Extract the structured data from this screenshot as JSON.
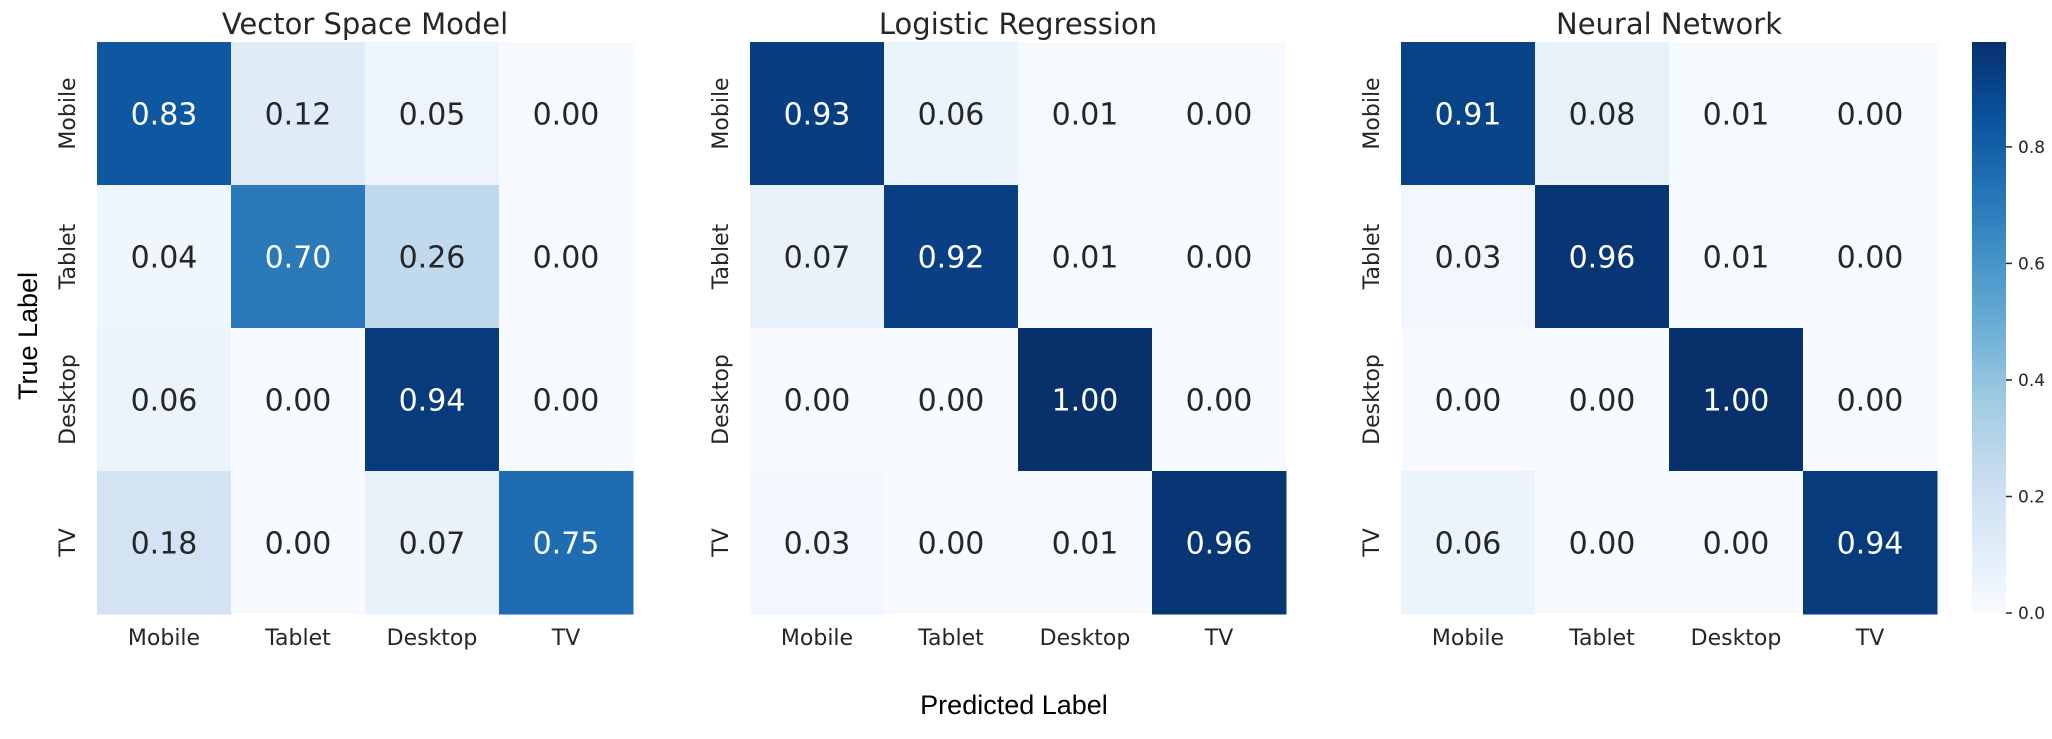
{
  "figure": {
    "xlabel": "Predicted Label",
    "ylabel": "True Label"
  },
  "chart_data": [
    {
      "type": "heatmap",
      "title": "Vector Space Model",
      "x_categories": [
        "Mobile",
        "Tablet",
        "Desktop",
        "TV"
      ],
      "y_categories": [
        "Mobile",
        "Tablet",
        "Desktop",
        "TV"
      ],
      "values": [
        [
          0.83,
          0.12,
          0.05,
          0.0
        ],
        [
          0.04,
          0.7,
          0.26,
          0.0
        ],
        [
          0.06,
          0.0,
          0.94,
          0.0
        ],
        [
          0.18,
          0.0,
          0.07,
          0.75
        ]
      ],
      "value_range": [
        0.0,
        0.98
      ],
      "colormap": "Blues"
    },
    {
      "type": "heatmap",
      "title": "Logistic Regression",
      "x_categories": [
        "Mobile",
        "Tablet",
        "Desktop",
        "TV"
      ],
      "y_categories": [
        "Mobile",
        "Tablet",
        "Desktop",
        "TV"
      ],
      "values": [
        [
          0.93,
          0.06,
          0.01,
          0.0
        ],
        [
          0.07,
          0.92,
          0.01,
          0.0
        ],
        [
          0.0,
          0.0,
          1.0,
          0.0
        ],
        [
          0.03,
          0.0,
          0.01,
          0.96
        ]
      ],
      "value_range": [
        0.0,
        0.98
      ],
      "colormap": "Blues"
    },
    {
      "type": "heatmap",
      "title": "Neural Network",
      "x_categories": [
        "Mobile",
        "Tablet",
        "Desktop",
        "TV"
      ],
      "y_categories": [
        "Mobile",
        "Tablet",
        "Desktop",
        "TV"
      ],
      "values": [
        [
          0.91,
          0.08,
          0.01,
          0.0
        ],
        [
          0.03,
          0.96,
          0.01,
          0.0
        ],
        [
          0.0,
          0.0,
          1.0,
          0.0
        ],
        [
          0.06,
          0.0,
          0.0,
          0.94
        ]
      ],
      "value_range": [
        0.0,
        0.98
      ],
      "colormap": "Blues"
    }
  ],
  "colorbar": {
    "ticks": [
      0.0,
      0.2,
      0.4,
      0.6,
      0.8
    ],
    "tick_labels": [
      "0.0",
      "0.2",
      "0.4",
      "0.6",
      "0.8"
    ],
    "range": [
      0.0,
      0.98
    ]
  },
  "colors": {
    "blues_scale": [
      "#f7fbff",
      "#deebf7",
      "#c6dbef",
      "#9ecae1",
      "#6baed6",
      "#4292c6",
      "#2171b5",
      "#08519c",
      "#08306b"
    ],
    "text_dark": "#262626",
    "text_light": "#ffffff"
  }
}
